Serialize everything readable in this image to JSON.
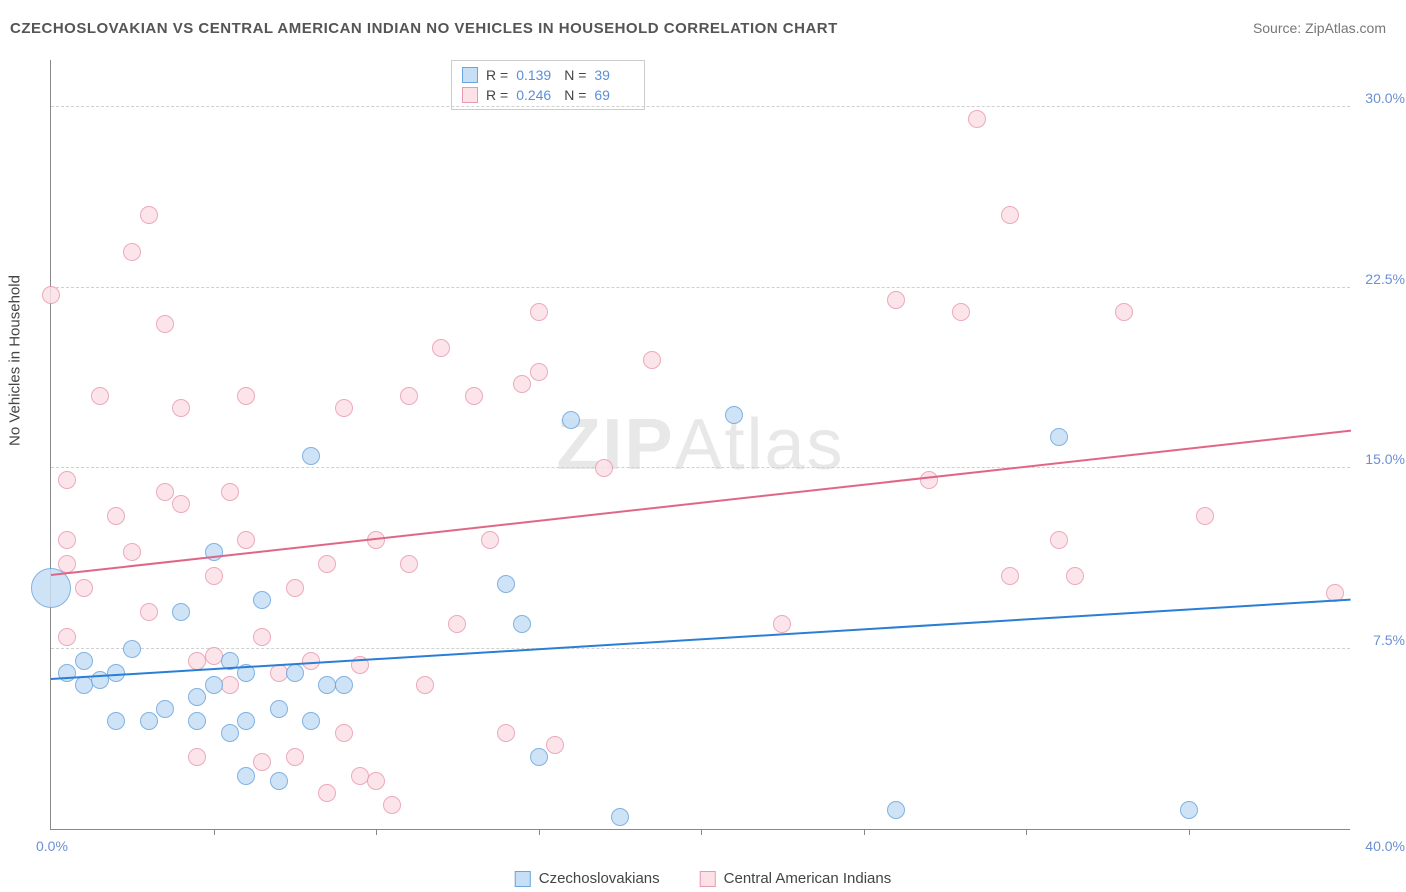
{
  "title": "CZECHOSLOVAKIAN VS CENTRAL AMERICAN INDIAN NO VEHICLES IN HOUSEHOLD CORRELATION CHART",
  "source": "Source: ZipAtlas.com",
  "ylabel": "No Vehicles in Household",
  "watermark_zip": "ZIP",
  "watermark_atlas": "Atlas",
  "chart": {
    "type": "scatter",
    "xlim": [
      0,
      40
    ],
    "ylim": [
      0,
      32
    ],
    "x_tick_left": "0.0%",
    "x_tick_right": "40.0%",
    "x_minor_ticks": [
      5,
      10,
      15,
      20,
      25,
      30,
      35
    ],
    "y_ticks": [
      {
        "v": 7.5,
        "label": "7.5%"
      },
      {
        "v": 15.0,
        "label": "15.0%"
      },
      {
        "v": 22.5,
        "label": "22.5%"
      },
      {
        "v": 30.0,
        "label": "30.0%"
      }
    ],
    "background_color": "#ffffff",
    "grid_color": "#d0d0d0",
    "axis_color": "#888888",
    "tick_label_color": "#6b8fd4"
  },
  "series": {
    "blue": {
      "label": "Czechoslovakians",
      "fill": "#c7dff5",
      "stroke": "#6aa5de",
      "line_color": "#2a7fd4",
      "R": "0.139",
      "N": "39",
      "trend": {
        "x1": 0,
        "y1": 6.2,
        "x2": 40,
        "y2": 9.5
      },
      "points": [
        {
          "x": 0,
          "y": 10,
          "r": 20
        },
        {
          "x": 0.5,
          "y": 6.5,
          "r": 9
        },
        {
          "x": 1,
          "y": 6,
          "r": 9
        },
        {
          "x": 1.5,
          "y": 6.2,
          "r": 9
        },
        {
          "x": 1,
          "y": 7,
          "r": 9
        },
        {
          "x": 2,
          "y": 6.5,
          "r": 9
        },
        {
          "x": 2.5,
          "y": 7.5,
          "r": 9
        },
        {
          "x": 3,
          "y": 4.5,
          "r": 9
        },
        {
          "x": 3.5,
          "y": 5,
          "r": 9
        },
        {
          "x": 2,
          "y": 4.5,
          "r": 9
        },
        {
          "x": 4,
          "y": 9,
          "r": 9
        },
        {
          "x": 4.5,
          "y": 5.5,
          "r": 9
        },
        {
          "x": 5,
          "y": 6,
          "r": 9
        },
        {
          "x": 5.5,
          "y": 7,
          "r": 9
        },
        {
          "x": 5,
          "y": 11.5,
          "r": 9
        },
        {
          "x": 6,
          "y": 4.5,
          "r": 9
        },
        {
          "x": 6.5,
          "y": 9.5,
          "r": 9
        },
        {
          "x": 7,
          "y": 5,
          "r": 9
        },
        {
          "x": 7.5,
          "y": 6.5,
          "r": 9
        },
        {
          "x": 7,
          "y": 2,
          "r": 9
        },
        {
          "x": 8,
          "y": 4.5,
          "r": 9
        },
        {
          "x": 8.5,
          "y": 6,
          "r": 9
        },
        {
          "x": 6,
          "y": 6.5,
          "r": 9
        },
        {
          "x": 4.5,
          "y": 4.5,
          "r": 9
        },
        {
          "x": 5.5,
          "y": 4,
          "r": 9
        },
        {
          "x": 8,
          "y": 15.5,
          "r": 9
        },
        {
          "x": 9,
          "y": 6,
          "r": 9
        },
        {
          "x": 14,
          "y": 10.2,
          "r": 9
        },
        {
          "x": 14.5,
          "y": 8.5,
          "r": 9
        },
        {
          "x": 15,
          "y": 3,
          "r": 9
        },
        {
          "x": 16,
          "y": 17,
          "r": 9
        },
        {
          "x": 17.5,
          "y": 0.5,
          "r": 9
        },
        {
          "x": 21,
          "y": 17.2,
          "r": 9
        },
        {
          "x": 26,
          "y": 0.8,
          "r": 9
        },
        {
          "x": 31,
          "y": 16.3,
          "r": 9
        },
        {
          "x": 35,
          "y": 0.8,
          "r": 9
        },
        {
          "x": 6,
          "y": 2.2,
          "r": 9
        }
      ]
    },
    "pink": {
      "label": "Central American Indians",
      "fill": "#fce1e7",
      "stroke": "#e89bb0",
      "line_color": "#e06688",
      "R": "0.246",
      "N": "69",
      "trend": {
        "x1": 0,
        "y1": 10.5,
        "x2": 40,
        "y2": 16.5
      },
      "points": [
        {
          "x": 0,
          "y": 22.2,
          "r": 9
        },
        {
          "x": 0.5,
          "y": 14.5,
          "r": 9
        },
        {
          "x": 0.5,
          "y": 11,
          "r": 9
        },
        {
          "x": 0.5,
          "y": 8,
          "r": 9
        },
        {
          "x": 0.5,
          "y": 12,
          "r": 9
        },
        {
          "x": 1,
          "y": 10,
          "r": 9
        },
        {
          "x": 1.5,
          "y": 18,
          "r": 9
        },
        {
          "x": 2,
          "y": 13,
          "r": 9
        },
        {
          "x": 2.5,
          "y": 24,
          "r": 9
        },
        {
          "x": 2.5,
          "y": 11.5,
          "r": 9
        },
        {
          "x": 3,
          "y": 9,
          "r": 9
        },
        {
          "x": 3,
          "y": 25.5,
          "r": 9
        },
        {
          "x": 3.5,
          "y": 14,
          "r": 9
        },
        {
          "x": 3.5,
          "y": 21,
          "r": 9
        },
        {
          "x": 4,
          "y": 13.5,
          "r": 9
        },
        {
          "x": 4,
          "y": 17.5,
          "r": 9
        },
        {
          "x": 4.5,
          "y": 7,
          "r": 9
        },
        {
          "x": 4.5,
          "y": 3,
          "r": 9
        },
        {
          "x": 5,
          "y": 10.5,
          "r": 9
        },
        {
          "x": 5,
          "y": 7.2,
          "r": 9
        },
        {
          "x": 5.5,
          "y": 6,
          "r": 9
        },
        {
          "x": 5.5,
          "y": 14,
          "r": 9
        },
        {
          "x": 6,
          "y": 18,
          "r": 9
        },
        {
          "x": 6,
          "y": 12,
          "r": 9
        },
        {
          "x": 6.5,
          "y": 8,
          "r": 9
        },
        {
          "x": 6.5,
          "y": 2.8,
          "r": 9
        },
        {
          "x": 7,
          "y": 6.5,
          "r": 9
        },
        {
          "x": 7.5,
          "y": 3,
          "r": 9
        },
        {
          "x": 7.5,
          "y": 10,
          "r": 9
        },
        {
          "x": 8,
          "y": 7,
          "r": 9
        },
        {
          "x": 8.5,
          "y": 1.5,
          "r": 9
        },
        {
          "x": 8.5,
          "y": 11,
          "r": 9
        },
        {
          "x": 9,
          "y": 4,
          "r": 9
        },
        {
          "x": 9,
          "y": 17.5,
          "r": 9
        },
        {
          "x": 9.5,
          "y": 6.8,
          "r": 9
        },
        {
          "x": 9.5,
          "y": 2.2,
          "r": 9
        },
        {
          "x": 10,
          "y": 12,
          "r": 9
        },
        {
          "x": 10,
          "y": 2,
          "r": 9
        },
        {
          "x": 10.5,
          "y": 1,
          "r": 9
        },
        {
          "x": 11,
          "y": 18,
          "r": 9
        },
        {
          "x": 11,
          "y": 11,
          "r": 9
        },
        {
          "x": 11.5,
          "y": 6,
          "r": 9
        },
        {
          "x": 12,
          "y": 20,
          "r": 9
        },
        {
          "x": 12.5,
          "y": 8.5,
          "r": 9
        },
        {
          "x": 13,
          "y": 18,
          "r": 9
        },
        {
          "x": 13.5,
          "y": 12,
          "r": 9
        },
        {
          "x": 14,
          "y": 4,
          "r": 9
        },
        {
          "x": 14.5,
          "y": 18.5,
          "r": 9
        },
        {
          "x": 15,
          "y": 19,
          "r": 9
        },
        {
          "x": 15,
          "y": 21.5,
          "r": 9
        },
        {
          "x": 15.5,
          "y": 3.5,
          "r": 9
        },
        {
          "x": 17,
          "y": 15,
          "r": 9
        },
        {
          "x": 18.5,
          "y": 19.5,
          "r": 9
        },
        {
          "x": 22.5,
          "y": 8.5,
          "r": 9
        },
        {
          "x": 26,
          "y": 22,
          "r": 9
        },
        {
          "x": 27,
          "y": 14.5,
          "r": 9
        },
        {
          "x": 28,
          "y": 21.5,
          "r": 9
        },
        {
          "x": 29.5,
          "y": 10.5,
          "r": 9
        },
        {
          "x": 29.5,
          "y": 25.5,
          "r": 9
        },
        {
          "x": 28.5,
          "y": 29.5,
          "r": 9
        },
        {
          "x": 31,
          "y": 12,
          "r": 9
        },
        {
          "x": 31.5,
          "y": 10.5,
          "r": 9
        },
        {
          "x": 33,
          "y": 21.5,
          "r": 9
        },
        {
          "x": 35.5,
          "y": 13,
          "r": 9
        },
        {
          "x": 39.5,
          "y": 9.8,
          "r": 9
        }
      ]
    }
  },
  "stat_legend": {
    "R_label": "R  =",
    "N_label": "N  ="
  }
}
